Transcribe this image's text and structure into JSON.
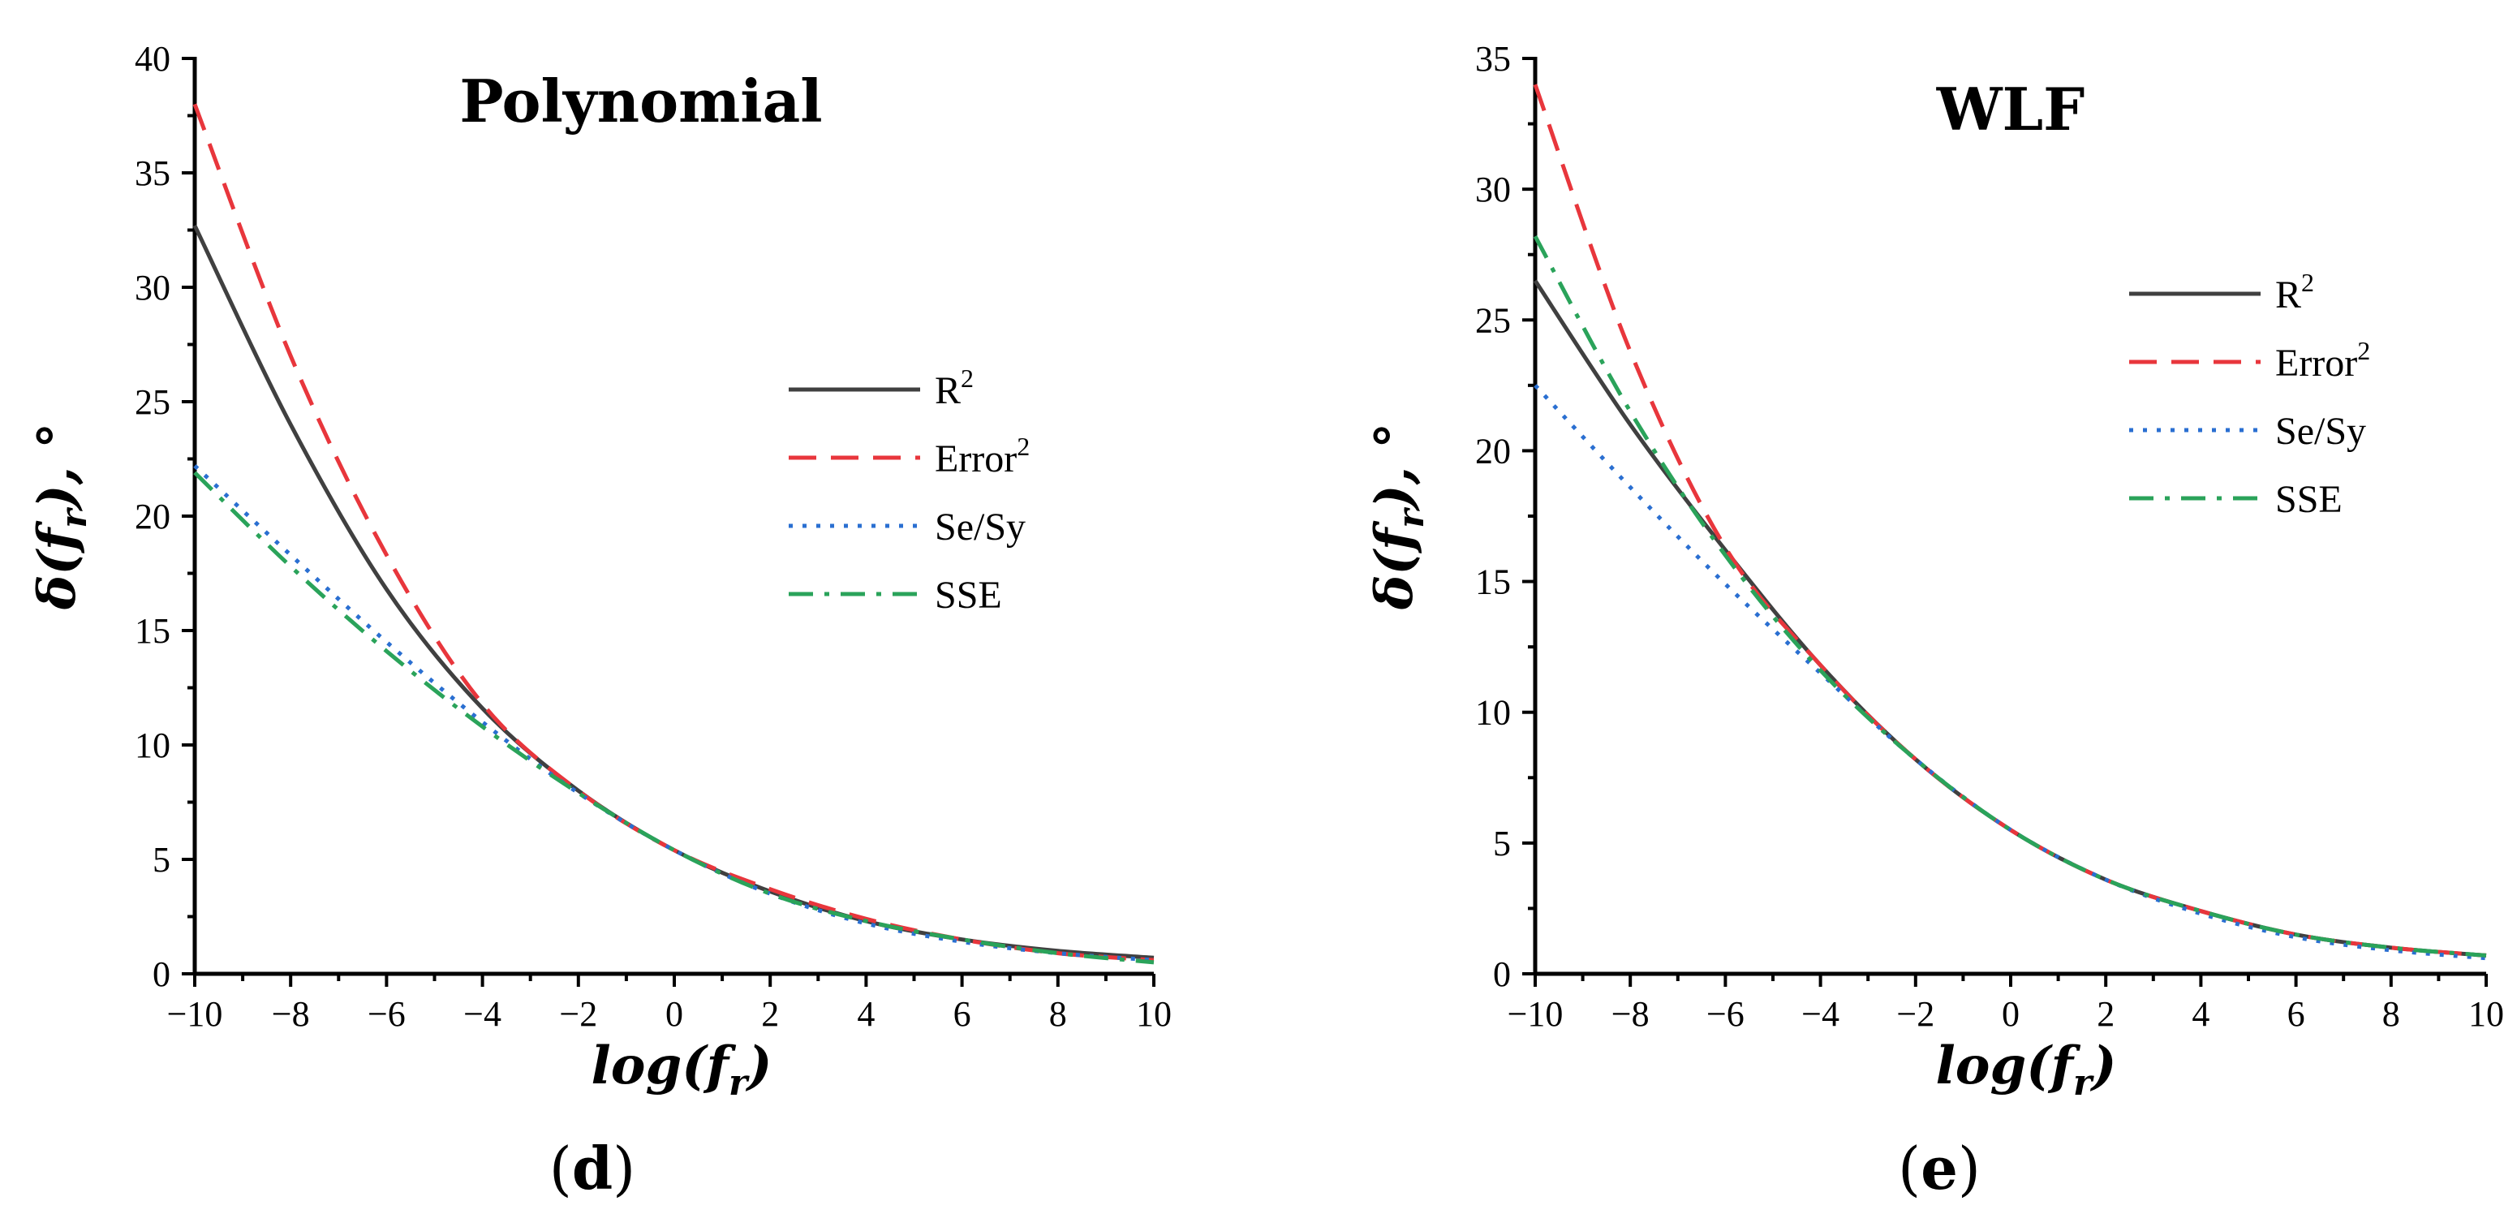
{
  "chart_data": [
    {
      "type": "line",
      "panel_label": "d",
      "title": "Polynomial",
      "xlabel": "log(f_r)",
      "ylabel": "δ(f_r), °",
      "xlim": [
        -10,
        10
      ],
      "ylim": [
        0,
        40
      ],
      "x_ticks": [
        -10,
        -8,
        -6,
        -4,
        -2,
        0,
        2,
        4,
        6,
        8,
        10
      ],
      "x_tick_labels": [
        "−10",
        "−8",
        "−6",
        "−4",
        "−2",
        "0",
        "2",
        "4",
        "6",
        "8",
        "10"
      ],
      "y_ticks": [
        0,
        5,
        10,
        15,
        20,
        25,
        30,
        35,
        40
      ],
      "legend_placement": "center-right",
      "x": [
        -10,
        -8,
        -6,
        -4,
        -2,
        0,
        2,
        4,
        6,
        8,
        10
      ],
      "series": [
        {
          "name": "R",
          "name_sup": "2",
          "color": "#404040",
          "dash": "solid",
          "values": [
            32.7,
            24.0,
            16.8,
            11.6,
            8.0,
            5.4,
            3.6,
            2.3,
            1.5,
            1.0,
            0.7
          ]
        },
        {
          "name": "Error",
          "name_sup": "2",
          "color": "#e8363c",
          "dash": "dashed",
          "values": [
            38.0,
            27.0,
            18.3,
            11.8,
            8.0,
            5.4,
            3.7,
            2.4,
            1.5,
            0.9,
            0.6
          ]
        },
        {
          "name": "Se/Sy",
          "name_sup": "",
          "color": "#2a6fd1",
          "dash": "dotted",
          "values": [
            22.2,
            18.3,
            14.5,
            11.0,
            7.9,
            5.4,
            3.5,
            2.2,
            1.4,
            0.9,
            0.6
          ]
        },
        {
          "name": "SSE",
          "name_sup": "",
          "color": "#2aa35a",
          "dash": "dashdot",
          "values": [
            21.9,
            17.8,
            14.1,
            10.8,
            7.9,
            5.4,
            3.5,
            2.3,
            1.5,
            0.9,
            0.5
          ]
        }
      ]
    },
    {
      "type": "line",
      "panel_label": "e",
      "title": "WLF",
      "xlabel": "log(f_r)",
      "ylabel": "δ(f_r), °",
      "xlim": [
        -10,
        10
      ],
      "ylim": [
        0,
        35
      ],
      "x_ticks": [
        -10,
        -8,
        -6,
        -4,
        -2,
        0,
        2,
        4,
        6,
        8,
        10
      ],
      "x_tick_labels": [
        "−10",
        "−8",
        "−6",
        "−4",
        "−2",
        "0",
        "2",
        "4",
        "6",
        "8",
        "10"
      ],
      "y_ticks": [
        0,
        5,
        10,
        15,
        20,
        25,
        30,
        35
      ],
      "legend_placement": "top-right",
      "x": [
        -10,
        -8,
        -6,
        -4,
        -2,
        0,
        2,
        4,
        6,
        8,
        10
      ],
      "series": [
        {
          "name": "R",
          "name_sup": "2",
          "color": "#404040",
          "dash": "solid",
          "values": [
            26.5,
            21.0,
            16.2,
            11.8,
            8.2,
            5.5,
            3.6,
            2.4,
            1.5,
            1.0,
            0.7
          ]
        },
        {
          "name": "Error",
          "name_sup": "2",
          "color": "#e8363c",
          "dash": "dashed",
          "values": [
            34.0,
            23.8,
            16.3,
            11.8,
            8.2,
            5.5,
            3.6,
            2.4,
            1.5,
            1.0,
            0.7
          ]
        },
        {
          "name": "Se/Sy",
          "name_sup": "",
          "color": "#2a6fd1",
          "dash": "dotted",
          "values": [
            22.5,
            18.6,
            14.9,
            11.5,
            8.2,
            5.5,
            3.6,
            2.3,
            1.4,
            0.9,
            0.6
          ]
        },
        {
          "name": "SSE",
          "name_sup": "",
          "color": "#2aa35a",
          "dash": "dashdot",
          "values": [
            28.2,
            21.5,
            16.0,
            11.6,
            8.2,
            5.5,
            3.6,
            2.4,
            1.5,
            1.0,
            0.7
          ]
        }
      ]
    }
  ]
}
